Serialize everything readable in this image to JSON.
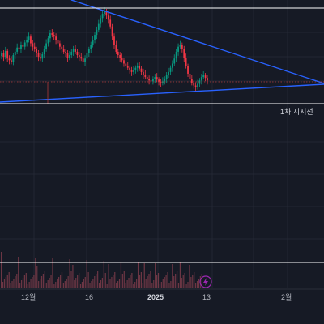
{
  "chart_data": {
    "type": "candlestick",
    "instrument_hint": "",
    "annotations": [
      {
        "name": "support_line_1",
        "text": "1차 지지선"
      }
    ],
    "trendlines": [
      {
        "name": "upper_descending",
        "color": "#2962ff"
      },
      {
        "name": "lower_ascending",
        "color": "#2962ff"
      }
    ],
    "horizontal_lines": [
      {
        "name": "red_dotted_reference",
        "color": "#b03a3a",
        "style": "dotted"
      }
    ],
    "price_series": {
      "up_color": "#089981",
      "down_color": "#f23645",
      "relative_closes": [
        0.5,
        0.46,
        0.53,
        0.44,
        0.42,
        0.4,
        0.48,
        0.52,
        0.57,
        0.55,
        0.6,
        0.58,
        0.63,
        0.66,
        0.7,
        0.62,
        0.58,
        0.55,
        0.5,
        0.46,
        0.44,
        0.49,
        0.55,
        0.62,
        0.68,
        0.74,
        0.72,
        0.7,
        0.66,
        0.62,
        0.58,
        0.55,
        0.52,
        0.5,
        0.45,
        0.48,
        0.52,
        0.55,
        0.52,
        0.48,
        0.46,
        0.44,
        0.4,
        0.44,
        0.5,
        0.55,
        0.6,
        0.66,
        0.72,
        0.78,
        0.85,
        0.92,
        0.97,
        1.0,
        0.95,
        0.9,
        0.82,
        0.7,
        0.6,
        0.52,
        0.48,
        0.45,
        0.42,
        0.38,
        0.35,
        0.33,
        0.3,
        0.28,
        0.3,
        0.33,
        0.35,
        0.32,
        0.28,
        0.25,
        0.22,
        0.2,
        0.18,
        0.17,
        0.2,
        0.22,
        0.19,
        0.16,
        0.15,
        0.17,
        0.2,
        0.24,
        0.28,
        0.33,
        0.38,
        0.44,
        0.52,
        0.58,
        0.6,
        0.55,
        0.45,
        0.35,
        0.26,
        0.2,
        0.15,
        0.12,
        0.1,
        0.14,
        0.18,
        0.22,
        0.24,
        0.21,
        0.18
      ]
    },
    "volume": {
      "color": "#b54f5f"
    },
    "x_axis_ticks": [
      {
        "label": "12월",
        "bold": false
      },
      {
        "label": "16",
        "bold": false
      },
      {
        "label": "2025",
        "bold": true
      },
      {
        "label": "13",
        "bold": false
      },
      {
        "label": "2월",
        "bold": false
      }
    ],
    "grid": true,
    "background": "#161a25",
    "separator_color": "#ffffff"
  },
  "ui": {
    "replay_icon_color": "#9c27b0"
  }
}
